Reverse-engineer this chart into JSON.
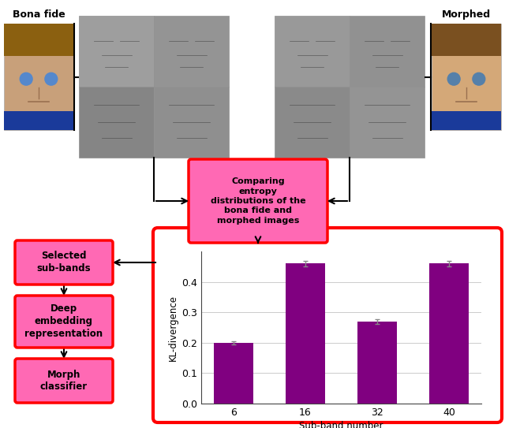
{
  "bar_categories": [
    "6",
    "16",
    "32",
    "40"
  ],
  "bar_values": [
    0.2,
    0.46,
    0.27,
    0.46
  ],
  "bar_errors": [
    0.005,
    0.008,
    0.008,
    0.008
  ],
  "bar_color": "#800080",
  "ylabel": "KL-divergence",
  "xlabel": "Sub-band number",
  "ylim": [
    0.0,
    0.5
  ],
  "yticks": [
    0.0,
    0.1,
    0.2,
    0.3,
    0.4
  ],
  "bona_fide_label": "Bona fide",
  "morphed_label": "Morphed",
  "box1_text": "Comparing\nentropy\ndistributions of the\nbona fide and\nmorphed images",
  "box2_text": "Selected\nsub-bands",
  "box3_text": "Deep\nembedding\nrepresentation",
  "box4_text": "Morph\nclassifier",
  "box_face_color": "#FF69B4",
  "box_edge_color": "#FF0000",
  "red_rect_edge_color": "#FF0000",
  "background_color": "#ffffff",
  "arrow_color": "#000000"
}
